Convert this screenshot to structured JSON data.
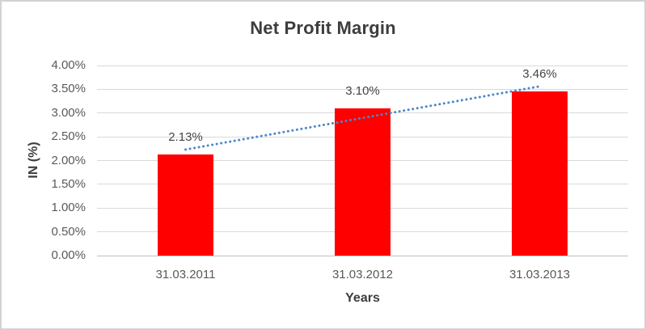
{
  "chart_data": {
    "type": "bar",
    "title": "Net Profit Margin",
    "xlabel": "Years",
    "ylabel": "IN (%)",
    "categories": [
      "31.03.2011",
      "31.03.2012",
      "31.03.2013"
    ],
    "series": [
      {
        "name": "Net Profit Margin",
        "values": [
          2.13,
          3.1,
          3.46
        ],
        "data_labels": [
          "2.13%",
          "3.10%",
          "3.46%"
        ],
        "color": "#ff0000"
      }
    ],
    "ylim": [
      0,
      4
    ],
    "ytick_step": 0.5,
    "ytick_labels": [
      "0.00%",
      "0.50%",
      "1.00%",
      "1.50%",
      "2.00%",
      "2.50%",
      "3.00%",
      "3.50%",
      "4.00%"
    ],
    "grid": true,
    "legend_position": "none",
    "trendline": {
      "type": "linear",
      "style": "dotted",
      "color": "#4a86c8"
    },
    "colors": {
      "bar": "#ff0000",
      "trendline": "#4a86c8",
      "gridline": "#d9d9d9",
      "axis_line": "#bfbfbf",
      "tick_text": "#595959",
      "title_text": "#3d3d3d",
      "data_label_text": "#444444",
      "frame_border": "#d2d2d2"
    }
  }
}
